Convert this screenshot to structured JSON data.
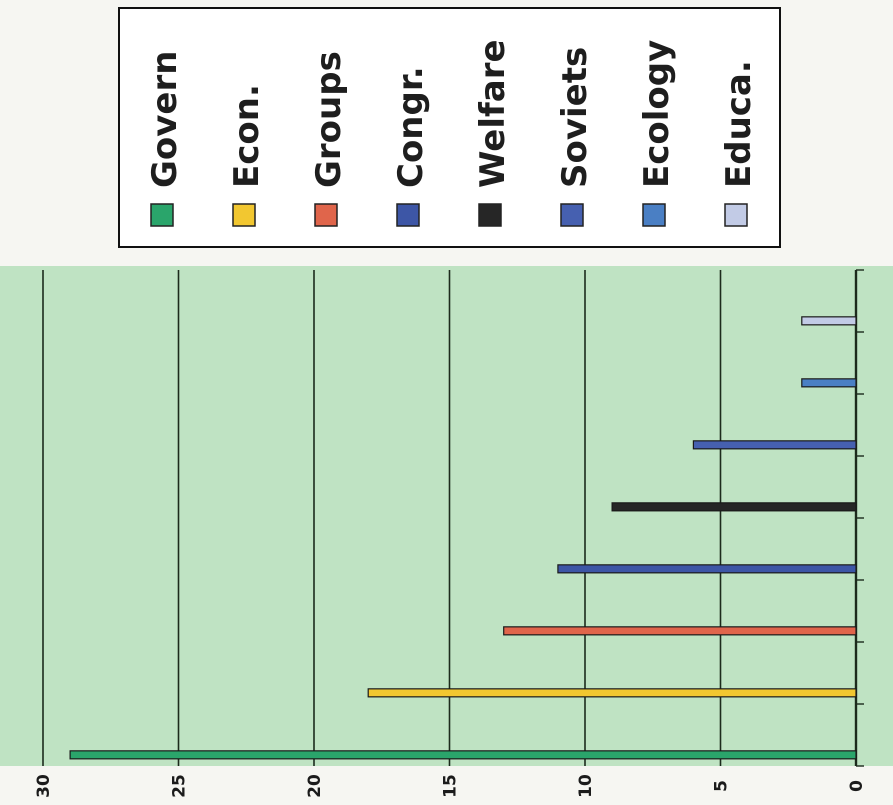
{
  "chart_data": {
    "type": "bar",
    "orientation": "horizontal",
    "categories": [
      "Govern",
      "Econ.",
      "Groups",
      "Congr.",
      "Welfare",
      "Soviets",
      "Ecology",
      "Educa."
    ],
    "values": [
      29,
      18,
      13,
      11,
      9,
      6,
      2,
      2
    ],
    "colors": [
      "#2aa56b",
      "#f2c730",
      "#e0654b",
      "#3d56a6",
      "#262626",
      "#4660b0",
      "#4a7fc4",
      "#c2cbe6"
    ],
    "xlim": [
      0,
      30
    ],
    "ticks": [
      0,
      5,
      10,
      15,
      20,
      25,
      30
    ],
    "grid": true,
    "plot_background": "#bfe3c3",
    "legend": {
      "placement": "top",
      "entries": [
        "Govern",
        "Econ.",
        "Groups",
        "Congr.",
        "Welfare",
        "Soviets",
        "Ecology",
        "Educa."
      ]
    },
    "title": "",
    "xlabel": "",
    "ylabel": ""
  }
}
